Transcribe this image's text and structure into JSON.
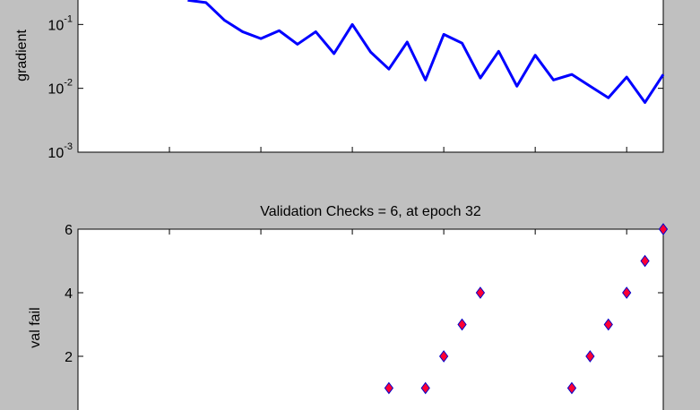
{
  "chart_data": [
    {
      "type": "line",
      "y_label": "gradient",
      "log_y": true,
      "x": [
        6,
        7,
        8,
        9,
        10,
        11,
        12,
        13,
        14,
        15,
        16,
        17,
        18,
        19,
        20,
        21,
        22,
        23,
        24,
        25,
        26,
        27,
        28,
        29,
        30,
        31,
        32
      ],
      "series": [
        {
          "color": "#0000ff",
          "values": [
            0.24,
            0.22,
            0.117,
            0.077,
            0.06,
            0.08,
            0.049,
            0.077,
            0.035,
            0.1,
            0.037,
            0.02,
            0.053,
            0.0135,
            0.07,
            0.051,
            0.0145,
            0.038,
            0.0108,
            0.033,
            0.0135,
            0.0165,
            0.0108,
            0.0071,
            0.015,
            0.006,
            0.0165
          ]
        }
      ],
      "xlim": [
        0,
        32
      ],
      "xticks": [
        0,
        5,
        10,
        15,
        20,
        25,
        30
      ],
      "ylim": [
        0.001,
        1
      ],
      "yticks": [
        {
          "value": 0.001,
          "label": "10^-3"
        },
        {
          "value": 0.01,
          "label": "10^-2"
        },
        {
          "value": 0.1,
          "label": "10^-1"
        }
      ]
    },
    {
      "type": "scatter",
      "title": "Validation Checks = 6, at epoch 32",
      "y_label": "val fail",
      "x": [
        17,
        19,
        20,
        21,
        22,
        27,
        28,
        29,
        30,
        31,
        32
      ],
      "values": [
        1,
        1,
        2,
        3,
        4,
        1,
        2,
        3,
        4,
        5,
        6
      ],
      "color": "#ff0033",
      "edge_color": "#0000cc",
      "xlim": [
        0,
        32
      ],
      "xticks": [
        0,
        5,
        10,
        15,
        20,
        25,
        30
      ],
      "ylim": [
        0,
        6
      ],
      "yticks": [
        2,
        4,
        6
      ]
    }
  ]
}
